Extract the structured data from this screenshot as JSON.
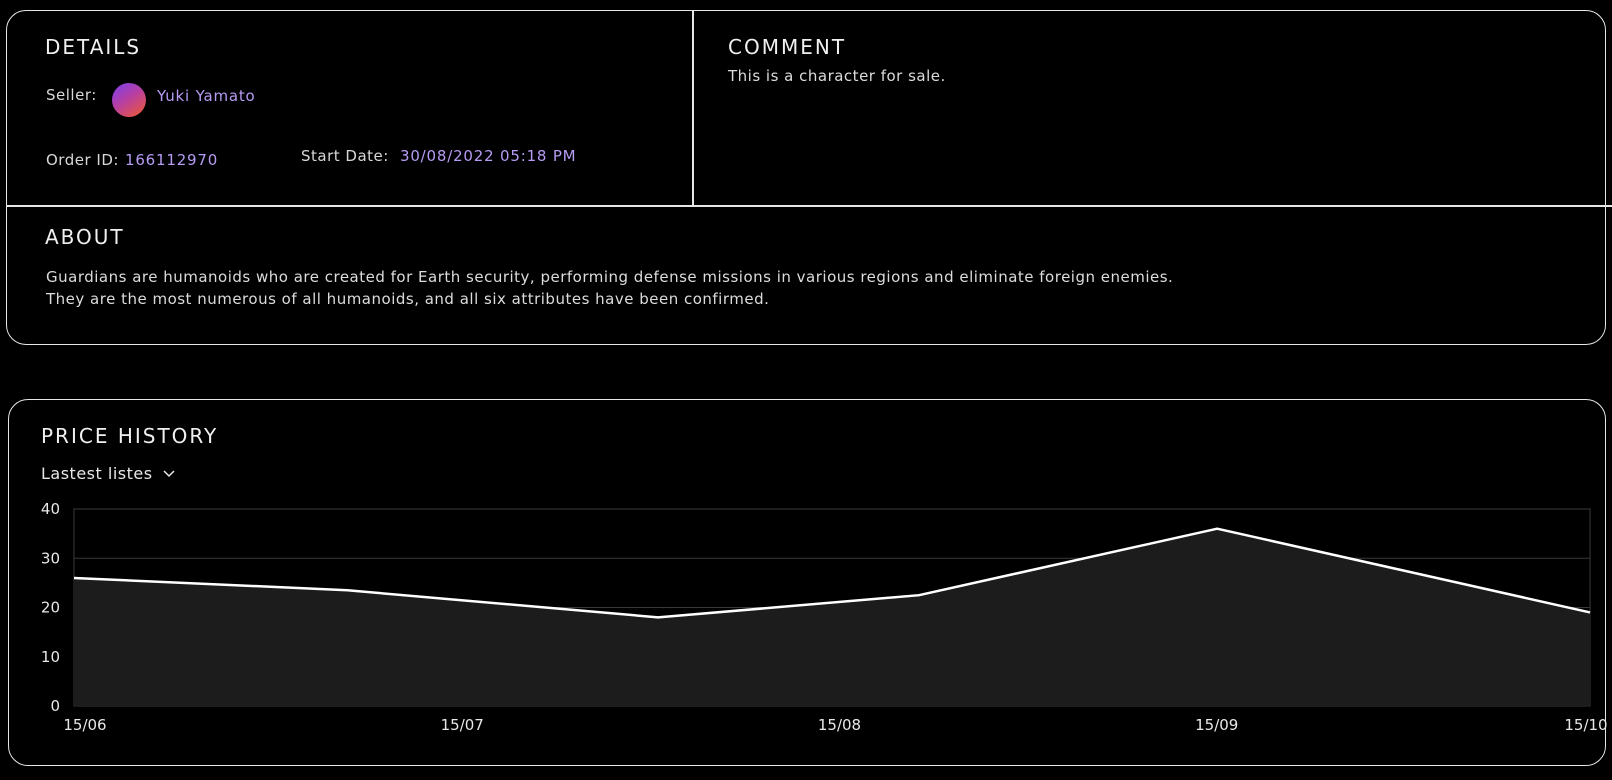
{
  "details": {
    "title": "DETAILS",
    "seller_label": "Seller:",
    "seller_name": "Yuki Yamato",
    "order_label": "Order ID:",
    "order_id": "166112970",
    "start_label": "Start Date:",
    "start_date": "30/08/2022 05:18 PM"
  },
  "comment": {
    "title": "COMMENT",
    "text": "This is a character for sale."
  },
  "about": {
    "title": "ABOUT",
    "line1": "Guardians are humanoids who are created for Earth security, performing defense missions in various regions and eliminate foreign enemies.",
    "line2": "They are the most numerous of all humanoids, and all six attributes have been confirmed."
  },
  "price_history": {
    "title": "PRICE HISTORY",
    "dropdown_label": "Lastest listes",
    "dropdown_icon": "chevron-down-icon"
  },
  "colors": {
    "accent": "#b79cf3",
    "background": "#000000",
    "border": "#e6e6e6",
    "area_fill": "#1c1c1c",
    "line": "#ffffff"
  },
  "chart_data": {
    "type": "area",
    "x": [
      "15/06",
      "15/07",
      "15/07-late",
      "15/08",
      "15/09",
      "15/10"
    ],
    "x_tick_labels": [
      "15/06",
      "15/07",
      "15/08",
      "15/09",
      "15/10"
    ],
    "series": [
      {
        "points": [
          {
            "x": "15/06",
            "y": 26
          },
          {
            "x": "07/07",
            "y": 23.5
          },
          {
            "x": "01/08",
            "y": 18
          },
          {
            "x": "22/08",
            "y": 22.5
          },
          {
            "x": "15/09",
            "y": 36
          },
          {
            "x": "15/10",
            "y": 19
          }
        ]
      }
    ],
    "y_ticks": [
      0,
      10,
      20,
      30,
      40
    ],
    "ylim": [
      0,
      40
    ],
    "grid": true
  }
}
